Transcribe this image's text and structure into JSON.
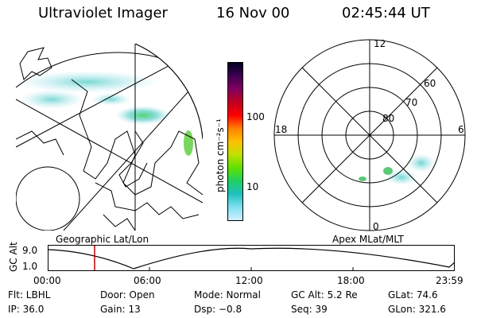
{
  "header": {
    "title": "Ultraviolet Imager",
    "date": "16 Nov 00",
    "time": "02:45:44 UT"
  },
  "panels": {
    "left_label": "Geographic Lat/Lon",
    "right_label": "Apex MLat/MLT"
  },
  "colorbar": {
    "label": "photon cm⁻²s⁻¹",
    "ticks": [
      "100",
      "10"
    ],
    "colors": [
      "#000020",
      "#400050",
      "#800060",
      "#c00020",
      "#ff0000",
      "#ff8000",
      "#ffc000",
      "#c0e000",
      "#60e000",
      "#20d060",
      "#20c0c0",
      "#80e0f0",
      "#d0f0ff"
    ]
  },
  "polar": {
    "mlt_labels": [
      "12",
      "18",
      "6",
      "0"
    ],
    "lat_labels": [
      "60",
      "70",
      "80"
    ]
  },
  "altitude": {
    "axis_label": "GC Alt",
    "ytick": "9.0",
    "ytick2": "1.0",
    "xticks": [
      "00:00",
      "06:00",
      "12:00",
      "18:00",
      "23:59"
    ]
  },
  "info": {
    "flt": "Flt: LBHL",
    "door": "Door: Open",
    "mode": "Mode: Normal",
    "gc_alt": "GC Alt: 5.2 Re",
    "glat": "GLat: 74.6",
    "ip": "IP: 36.0",
    "gain": "Gain: 13",
    "dsp": "Dsp:  −0.8",
    "seq": "Seq: 39",
    "glon": "GLon: 321.6"
  },
  "icons": {
    "cursor": "current-time-marker"
  }
}
